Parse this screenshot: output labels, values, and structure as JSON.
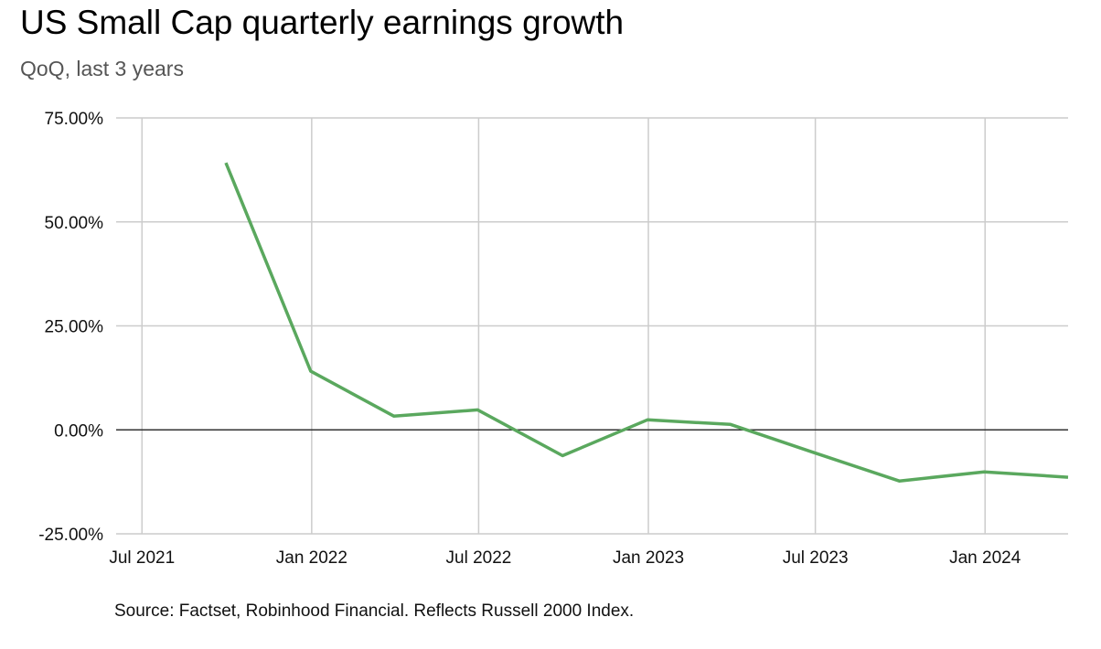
{
  "chart_data": {
    "type": "line",
    "title": "US Small Cap quarterly earnings growth",
    "subtitle": "QoQ, last 3 years",
    "source": "Source: Factset, Robinhood Financial. Reflects Russell 2000 Index.",
    "xlabel": "",
    "ylabel": "",
    "ylim": [
      -25,
      75
    ],
    "yticks": [
      75,
      50,
      25,
      0,
      -25
    ],
    "ytick_labels": [
      "75.00%",
      "50.00%",
      "25.00%",
      "0.00%",
      "-25.00%"
    ],
    "xticks": [
      "2021-07-01",
      "2022-01-01",
      "2022-07-01",
      "2023-01-01",
      "2023-07-01",
      "2024-01-01"
    ],
    "xtick_labels": [
      "Jul 2021",
      "Jan 2022",
      "Jul 2022",
      "Jan 2023",
      "Jul 2023",
      "Jan 2024"
    ],
    "xlim": [
      "2021-06-03",
      "2024-03-31"
    ],
    "grid": true,
    "legend": "none",
    "series": [
      {
        "name": "QoQ earnings growth",
        "color": "#5aa85e",
        "x": [
          "2021-09-30",
          "2021-12-31",
          "2022-03-31",
          "2022-06-30",
          "2022-09-30",
          "2022-12-31",
          "2023-03-31",
          "2023-06-30",
          "2023-09-30",
          "2023-12-31",
          "2024-03-31"
        ],
        "values": [
          64.2,
          14.1,
          3.3,
          4.8,
          -6.2,
          2.4,
          1.3,
          -5.5,
          -12.3,
          -10.1,
          -11.4
        ]
      }
    ]
  },
  "colors": {
    "line": "#5aa85e",
    "grid": "#cccccc",
    "zero_line": "#333333"
  }
}
